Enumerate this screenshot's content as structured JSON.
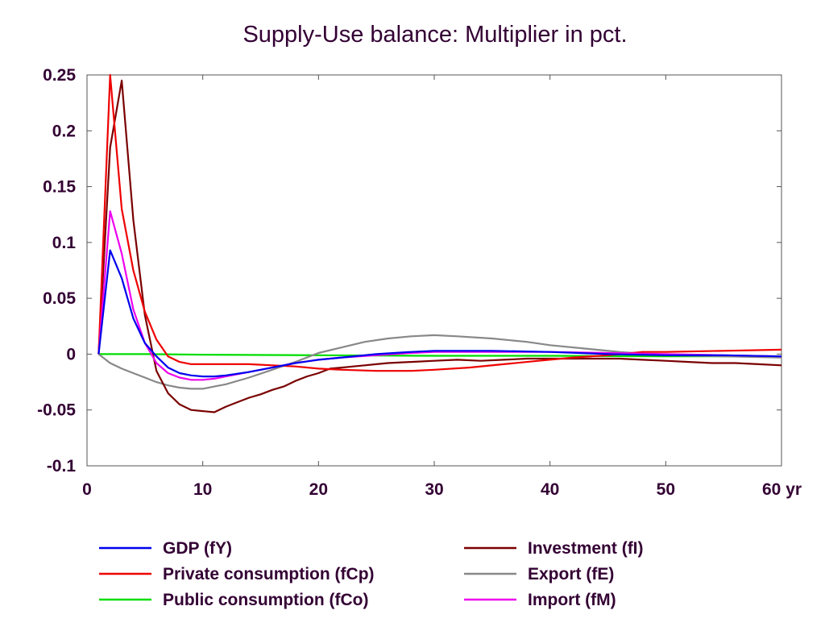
{
  "chart_data": {
    "type": "line",
    "title": "Supply-Use balance: Multiplier in pct.",
    "xlabel": "",
    "ylabel": "",
    "x_unit": "yr",
    "xlim": [
      0,
      60
    ],
    "ylim": [
      -0.1,
      0.25
    ],
    "x_ticks": [
      0,
      10,
      20,
      30,
      40,
      50,
      60
    ],
    "x_tick_labels": [
      "0",
      "10",
      "20",
      "30",
      "40",
      "50",
      "60 yr"
    ],
    "y_ticks": [
      -0.1,
      -0.05,
      0,
      0.05,
      0.1,
      0.15,
      0.2,
      0.25
    ],
    "y_tick_labels": [
      "-0.1",
      "-0.05",
      "0",
      "0.05",
      "0.1",
      "0.15",
      "0.2",
      "0.25"
    ],
    "grid": false,
    "legend_position": "bottom",
    "series": [
      {
        "name": "GDP (fY)",
        "color": "#0000ee",
        "points": [
          [
            1,
            0
          ],
          [
            2,
            0.093
          ],
          [
            3,
            0.068
          ],
          [
            4,
            0.032
          ],
          [
            5,
            0.01
          ],
          [
            6,
            -0.002
          ],
          [
            7,
            -0.012
          ],
          [
            8,
            -0.017
          ],
          [
            9,
            -0.019
          ],
          [
            10,
            -0.02
          ],
          [
            11,
            -0.02
          ],
          [
            12,
            -0.019
          ],
          [
            14,
            -0.016
          ],
          [
            16,
            -0.012
          ],
          [
            18,
            -0.008
          ],
          [
            20,
            -0.005
          ],
          [
            22,
            -0.003
          ],
          [
            25,
            0.0
          ],
          [
            28,
            0.002
          ],
          [
            30,
            0.003
          ],
          [
            35,
            0.003
          ],
          [
            40,
            0.002
          ],
          [
            45,
            0.0
          ],
          [
            50,
            -0.001
          ],
          [
            55,
            -0.001
          ],
          [
            60,
            -0.002
          ]
        ]
      },
      {
        "name": "Private consumption (fCp)",
        "color": "#ee0000",
        "points": [
          [
            1,
            0
          ],
          [
            2,
            0.25
          ],
          [
            3,
            0.13
          ],
          [
            4,
            0.075
          ],
          [
            5,
            0.038
          ],
          [
            6,
            0.013
          ],
          [
            7,
            -0.002
          ],
          [
            8,
            -0.007
          ],
          [
            9,
            -0.009
          ],
          [
            10,
            -0.009
          ],
          [
            12,
            -0.009
          ],
          [
            14,
            -0.009
          ],
          [
            16,
            -0.01
          ],
          [
            18,
            -0.011
          ],
          [
            20,
            -0.013
          ],
          [
            22,
            -0.014
          ],
          [
            25,
            -0.015
          ],
          [
            28,
            -0.015
          ],
          [
            30,
            -0.014
          ],
          [
            33,
            -0.012
          ],
          [
            36,
            -0.009
          ],
          [
            39,
            -0.006
          ],
          [
            42,
            -0.003
          ],
          [
            45,
            -0.001
          ],
          [
            48,
            0.002
          ],
          [
            50,
            0.002
          ],
          [
            55,
            0.003
          ],
          [
            60,
            0.004
          ]
        ]
      },
      {
        "name": "Public consumption (fCo)",
        "color": "#00dd00",
        "points": [
          [
            1,
            0
          ],
          [
            5,
            0
          ],
          [
            10,
            -0.0005
          ],
          [
            20,
            -0.001
          ],
          [
            30,
            -0.0015
          ],
          [
            40,
            -0.0015
          ],
          [
            50,
            -0.002
          ],
          [
            60,
            -0.002
          ]
        ]
      },
      {
        "name": "Investment (fI)",
        "color": "#7a0000",
        "points": [
          [
            1,
            0
          ],
          [
            2,
            0.185
          ],
          [
            3,
            0.245
          ],
          [
            4,
            0.12
          ],
          [
            5,
            0.035
          ],
          [
            6,
            -0.015
          ],
          [
            7,
            -0.035
          ],
          [
            8,
            -0.045
          ],
          [
            9,
            -0.05
          ],
          [
            10,
            -0.051
          ],
          [
            11,
            -0.052
          ],
          [
            12,
            -0.047
          ],
          [
            13,
            -0.043
          ],
          [
            14,
            -0.039
          ],
          [
            15,
            -0.036
          ],
          [
            16,
            -0.032
          ],
          [
            17,
            -0.029
          ],
          [
            18,
            -0.024
          ],
          [
            19,
            -0.02
          ],
          [
            20,
            -0.017
          ],
          [
            21,
            -0.013
          ],
          [
            22,
            -0.012
          ],
          [
            23,
            -0.011
          ],
          [
            24,
            -0.01
          ],
          [
            25,
            -0.009
          ],
          [
            26,
            -0.008
          ],
          [
            28,
            -0.007
          ],
          [
            30,
            -0.006
          ],
          [
            32,
            -0.005
          ],
          [
            34,
            -0.006
          ],
          [
            36,
            -0.005
          ],
          [
            38,
            -0.004
          ],
          [
            40,
            -0.004
          ],
          [
            42,
            -0.004
          ],
          [
            44,
            -0.004
          ],
          [
            46,
            -0.004
          ],
          [
            48,
            -0.005
          ],
          [
            50,
            -0.006
          ],
          [
            52,
            -0.007
          ],
          [
            54,
            -0.008
          ],
          [
            56,
            -0.008
          ],
          [
            58,
            -0.009
          ],
          [
            60,
            -0.01
          ]
        ]
      },
      {
        "name": "Export (fE)",
        "color": "#888888",
        "points": [
          [
            1,
            0
          ],
          [
            2,
            -0.008
          ],
          [
            3,
            -0.013
          ],
          [
            4,
            -0.017
          ],
          [
            5,
            -0.021
          ],
          [
            6,
            -0.025
          ],
          [
            7,
            -0.028
          ],
          [
            8,
            -0.03
          ],
          [
            9,
            -0.031
          ],
          [
            10,
            -0.031
          ],
          [
            11,
            -0.029
          ],
          [
            12,
            -0.027
          ],
          [
            14,
            -0.021
          ],
          [
            16,
            -0.014
          ],
          [
            18,
            -0.007
          ],
          [
            20,
            0.001
          ],
          [
            22,
            0.006
          ],
          [
            24,
            0.011
          ],
          [
            26,
            0.014
          ],
          [
            28,
            0.016
          ],
          [
            30,
            0.017
          ],
          [
            32,
            0.016
          ],
          [
            35,
            0.014
          ],
          [
            38,
            0.011
          ],
          [
            40,
            0.008
          ],
          [
            43,
            0.005
          ],
          [
            46,
            0.002
          ],
          [
            50,
            -0.001
          ],
          [
            55,
            -0.002
          ],
          [
            60,
            -0.003
          ]
        ]
      },
      {
        "name": "Import (fM)",
        "color": "#ee00ee",
        "points": [
          [
            1,
            0
          ],
          [
            2,
            0.128
          ],
          [
            3,
            0.09
          ],
          [
            4,
            0.04
          ],
          [
            5,
            0.01
          ],
          [
            6,
            -0.008
          ],
          [
            7,
            -0.017
          ],
          [
            8,
            -0.021
          ],
          [
            9,
            -0.023
          ],
          [
            10,
            -0.023
          ],
          [
            11,
            -0.022
          ],
          [
            12,
            -0.02
          ],
          [
            14,
            -0.016
          ],
          [
            16,
            -0.012
          ],
          [
            18,
            -0.008
          ],
          [
            20,
            -0.005
          ],
          [
            22,
            -0.003
          ],
          [
            25,
            -0.001
          ],
          [
            28,
            0.001
          ],
          [
            30,
            0.002
          ],
          [
            35,
            0.002
          ],
          [
            40,
            0.002
          ],
          [
            45,
            0.001
          ],
          [
            50,
            0.0
          ],
          [
            55,
            -0.001
          ],
          [
            60,
            -0.002
          ]
        ]
      }
    ],
    "legend_columns": [
      [
        "GDP (fY)",
        "Private consumption (fCp)",
        "Public consumption (fCo)"
      ],
      [
        "Investment (fI)",
        "Export (fE)",
        "Import (fM)"
      ]
    ]
  }
}
